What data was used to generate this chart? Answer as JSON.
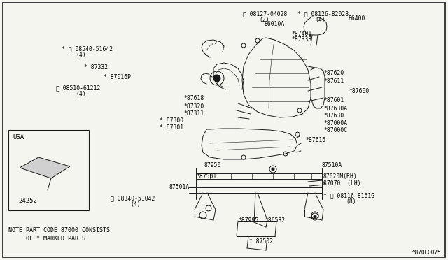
{
  "background_color": "#f5f5f0",
  "border_color": "#000000",
  "line_color": "#1a1a1a",
  "text_color": "#000000",
  "diagram_code": "^870C0075",
  "note_line1": "NOTE:PART CODE 87000 CONSISTS",
  "note_line2": "     OF * MARKED PARTS",
  "usa_label": "USA",
  "usa_part": "24252",
  "figsize": [
    6.4,
    3.72
  ],
  "dpi": 100
}
